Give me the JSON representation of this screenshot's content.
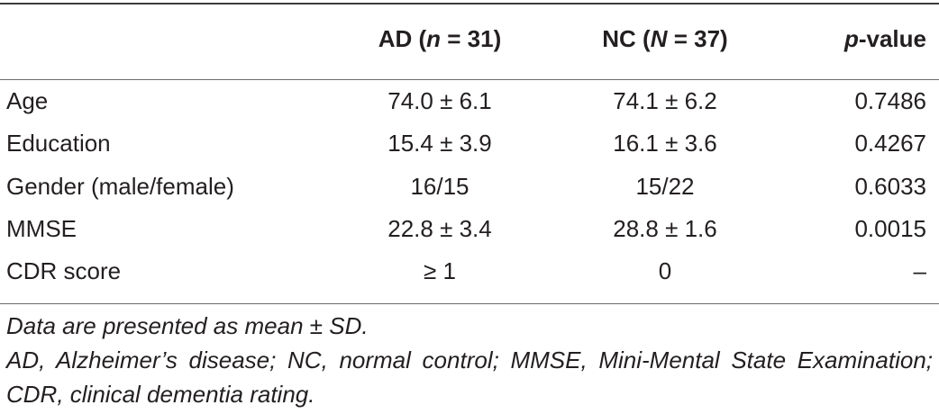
{
  "table": {
    "header": {
      "ad_prefix": "AD (",
      "ad_var": "n",
      "ad_suffix": " = 31)",
      "nc_prefix": "NC (",
      "nc_var": "N",
      "nc_suffix": " = 37)",
      "p_var": "p",
      "p_suffix": "-value"
    },
    "rows": [
      {
        "label": "Age",
        "ad": "74.0 ± 6.1",
        "nc": "74.1 ± 6.2",
        "p": "0.7486"
      },
      {
        "label": "Education",
        "ad": "15.4 ± 3.9",
        "nc": "16.1 ± 3.6",
        "p": "0.4267"
      },
      {
        "label": "Gender (male/female)",
        "ad": "16/15",
        "nc": "15/22",
        "p": "0.6033"
      },
      {
        "label": "MMSE",
        "ad": "22.8 ± 3.4",
        "nc": "28.8 ± 1.6",
        "p": "0.0015"
      },
      {
        "label": "CDR score",
        "ad": "≥ 1",
        "nc": "0",
        "p": "–"
      }
    ]
  },
  "notes": {
    "line1": "Data are presented as mean ± SD.",
    "line2": "AD, Alzheimer’s disease; NC, normal control; MMSE, Mini-Mental State Examination; CDR, clinical dementia rating."
  }
}
